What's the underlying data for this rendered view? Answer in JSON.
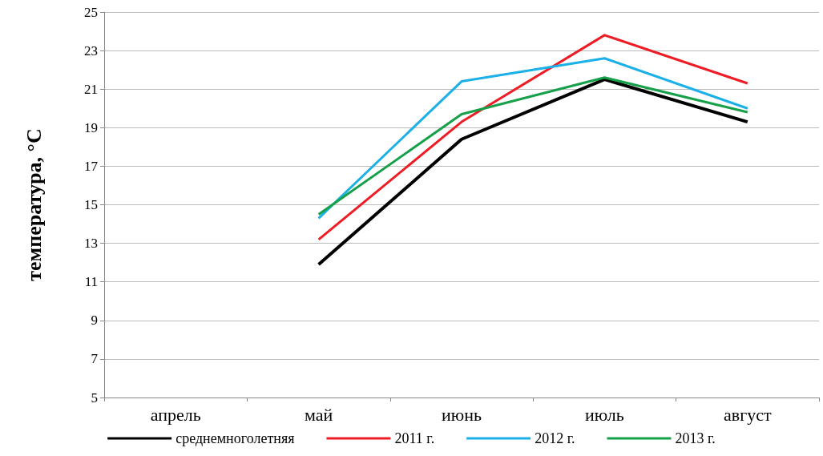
{
  "chart_data": {
    "type": "line",
    "ylabel": "температура, °C",
    "categories": [
      "апрель",
      "май",
      "июнь",
      "июль",
      "август"
    ],
    "series": [
      {
        "name": "среднемноголетняя",
        "color": "#000000",
        "values": [
          null,
          11.9,
          18.4,
          21.5,
          19.3
        ]
      },
      {
        "name": "2011 г.",
        "color": "#ee1c25",
        "values": [
          null,
          13.2,
          19.3,
          23.8,
          21.3
        ]
      },
      {
        "name": "2012 г.",
        "color": "#1cb0e8",
        "values": [
          null,
          14.3,
          21.4,
          22.6,
          20.0
        ]
      },
      {
        "name": "2013 г.",
        "color": "#17a04a",
        "values": [
          null,
          14.5,
          19.7,
          21.6,
          19.8
        ]
      }
    ],
    "ylim": [
      5,
      25
    ],
    "yticks": [
      5,
      7,
      9,
      11,
      13,
      15,
      17,
      19,
      21,
      23,
      25
    ],
    "grid": "y",
    "legend": "bottom",
    "marker": "none",
    "line_style": "solid"
  }
}
